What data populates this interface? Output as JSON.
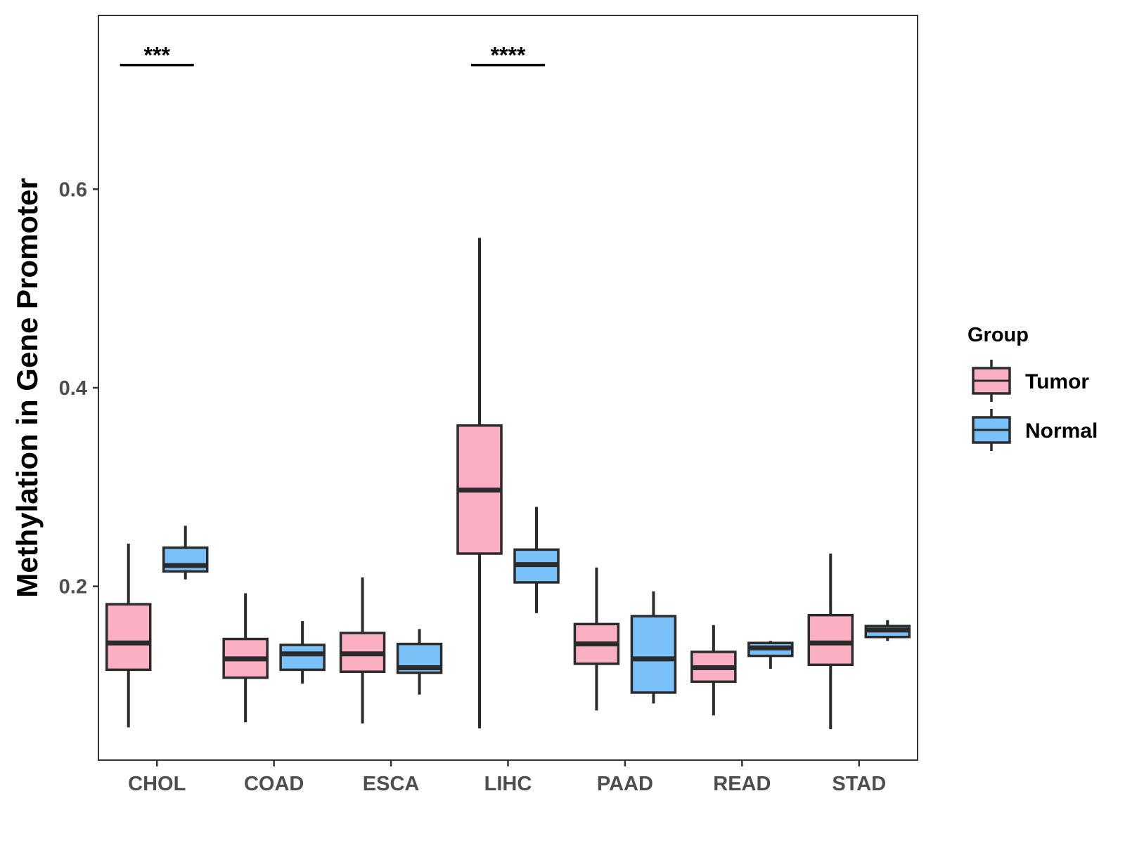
{
  "chart_data": {
    "type": "boxplot",
    "title": "",
    "xlabel": "",
    "ylabel": "Methylation in Gene Promoter",
    "ylim": [
      0.025,
      0.775
    ],
    "yticks": [
      0.2,
      0.4,
      0.6
    ],
    "ytick_labels": [
      "0.2",
      "0.4",
      "0.6"
    ],
    "categories": [
      "CHOL",
      "COAD",
      "ESCA",
      "LIHC",
      "PAAD",
      "READ",
      "STAD"
    ],
    "grid": false,
    "legend": {
      "title": "Group",
      "position": "right",
      "entries": [
        {
          "name": "Tumor",
          "color": "#FAAFC2"
        },
        {
          "name": "Normal",
          "color": "#79C1F8"
        }
      ]
    },
    "series": [
      {
        "name": "Tumor",
        "color": "#FAAFC2",
        "boxes": [
          {
            "category": "CHOL",
            "min": 0.058,
            "q1": 0.116,
            "median": 0.143,
            "q3": 0.182,
            "max": 0.243
          },
          {
            "category": "COAD",
            "min": 0.063,
            "q1": 0.108,
            "median": 0.127,
            "q3": 0.147,
            "max": 0.193
          },
          {
            "category": "ESCA",
            "min": 0.062,
            "q1": 0.114,
            "median": 0.132,
            "q3": 0.153,
            "max": 0.209
          },
          {
            "category": "LIHC",
            "min": 0.057,
            "q1": 0.233,
            "median": 0.297,
            "q3": 0.362,
            "max": 0.551
          },
          {
            "category": "PAAD",
            "min": 0.075,
            "q1": 0.122,
            "median": 0.142,
            "q3": 0.162,
            "max": 0.219
          },
          {
            "category": "READ",
            "min": 0.07,
            "q1": 0.104,
            "median": 0.118,
            "q3": 0.134,
            "max": 0.161
          },
          {
            "category": "STAD",
            "min": 0.056,
            "q1": 0.121,
            "median": 0.143,
            "q3": 0.171,
            "max": 0.233
          }
        ]
      },
      {
        "name": "Normal",
        "color": "#79C1F8",
        "boxes": [
          {
            "category": "CHOL",
            "min": 0.207,
            "q1": 0.215,
            "median": 0.221,
            "q3": 0.239,
            "max": 0.261
          },
          {
            "category": "COAD",
            "min": 0.102,
            "q1": 0.116,
            "median": 0.132,
            "q3": 0.141,
            "max": 0.165
          },
          {
            "category": "ESCA",
            "min": 0.091,
            "q1": 0.113,
            "median": 0.118,
            "q3": 0.142,
            "max": 0.157
          },
          {
            "category": "LIHC",
            "min": 0.173,
            "q1": 0.204,
            "median": 0.222,
            "q3": 0.237,
            "max": 0.28
          },
          {
            "category": "PAAD",
            "min": 0.082,
            "q1": 0.093,
            "median": 0.127,
            "q3": 0.17,
            "max": 0.195
          },
          {
            "category": "READ",
            "min": 0.117,
            "q1": 0.13,
            "median": 0.138,
            "q3": 0.143,
            "max": 0.145
          },
          {
            "category": "STAD",
            "min": 0.145,
            "q1": 0.149,
            "median": 0.156,
            "q3": 0.16,
            "max": 0.166
          }
        ]
      }
    ],
    "annotations": [
      {
        "category": "CHOL",
        "label": "***",
        "y": 0.725
      },
      {
        "category": "LIHC",
        "label": "****",
        "y": 0.725
      }
    ]
  }
}
